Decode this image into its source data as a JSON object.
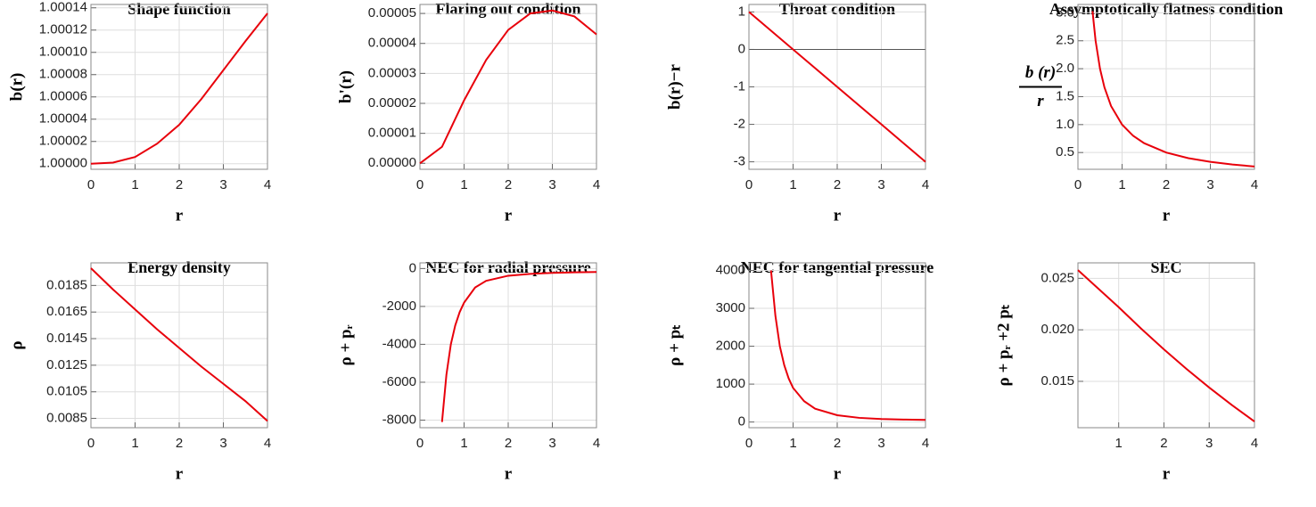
{
  "chart_data": [
    {
      "type": "line",
      "title": "Shape function",
      "xlabel": "r",
      "ylabel": "b(r)",
      "color": "#e8000b",
      "grid": true,
      "x": [
        0,
        0.5,
        1,
        1.5,
        2,
        2.5,
        3,
        3.5,
        4
      ],
      "values": [
        1.0,
        1.000001,
        1.000006,
        1.000018,
        1.000035,
        1.000058,
        1.000084,
        1.00011,
        1.000135
      ],
      "xlim": [
        0,
        4
      ],
      "ylim": [
        0.999995,
        1.000143
      ],
      "xticks": [
        0,
        1,
        2,
        3,
        4
      ],
      "yticks": [
        {
          "value": 1.0,
          "label": "1.00000"
        },
        {
          "value": 1.00002,
          "label": "1.00002"
        },
        {
          "value": 1.00004,
          "label": "1.00004"
        },
        {
          "value": 1.00006,
          "label": "1.00006"
        },
        {
          "value": 1.00008,
          "label": "1.00008"
        },
        {
          "value": 1.0001,
          "label": "1.00010"
        },
        {
          "value": 1.00012,
          "label": "1.00012"
        },
        1.00014
      ]
    },
    {
      "type": "line",
      "title": "Flaring out condition",
      "xlabel": "r",
      "ylabel": "b'(r)",
      "color": "#e8000b",
      "grid": true,
      "x": [
        0,
        0.5,
        1,
        1.5,
        2,
        2.5,
        3,
        3.5,
        4
      ],
      "values": [
        0,
        5.5e-06,
        2.1e-05,
        3.45e-05,
        4.45e-05,
        5e-05,
        5.1e-05,
        4.9e-05,
        4.3e-05
      ],
      "xlim": [
        0,
        4
      ],
      "ylim": [
        -2e-06,
        5.3e-05
      ],
      "xticks": [
        0,
        1,
        2,
        3,
        4
      ],
      "yticks": [
        {
          "value": 0,
          "label": "0.00000"
        },
        1e-05,
        2e-05,
        3e-05,
        4e-05,
        5e-05
      ]
    },
    {
      "type": "line",
      "title": "Throat condition",
      "xlabel": "r",
      "ylabel": "b(r)−r",
      "color": "#e8000b",
      "grid": true,
      "axes": true,
      "x": [
        0,
        1,
        2,
        3,
        4
      ],
      "values": [
        1,
        0,
        -1,
        -2,
        -3
      ],
      "xlim": [
        0,
        4
      ],
      "ylim": [
        -3.2,
        1.2
      ],
      "xticks": [
        0,
        1,
        2,
        3,
        4
      ],
      "yticks": [
        -3,
        -2,
        -1,
        0,
        1
      ]
    },
    {
      "type": "line",
      "title": "Assymptotically flatness condition",
      "xlabel": "r",
      "ylabel": {
        "numerator": "b (r)",
        "denominator": "r"
      },
      "color": "#e8000b",
      "grid": true,
      "x": [
        0.33,
        0.4,
        0.5,
        0.6,
        0.75,
        1,
        1.25,
        1.5,
        2,
        2.5,
        3,
        3.5,
        4
      ],
      "values": [
        3.03,
        2.5,
        2.0,
        1.667,
        1.333,
        1.0,
        0.8,
        0.667,
        0.5,
        0.4,
        0.333,
        0.286,
        0.25
      ],
      "xlim": [
        0,
        4
      ],
      "ylim": [
        0.2,
        3.15
      ],
      "xticks": [
        0,
        1,
        2,
        3,
        4
      ],
      "yticks": [
        0.5,
        {
          "value": 1,
          "label": "1.0"
        },
        1.5,
        {
          "value": 2,
          "label": "2.0"
        },
        2.5,
        {
          "value": 3,
          "label": "3.0"
        }
      ]
    },
    {
      "type": "line",
      "title": "Energy density",
      "xlabel": "r",
      "ylabel": "ρ",
      "color": "#e8000b",
      "grid": true,
      "x": [
        0,
        0.5,
        1,
        1.5,
        2,
        2.5,
        3,
        3.5,
        4
      ],
      "values": [
        0.0198,
        0.0182,
        0.0167,
        0.0152,
        0.0138,
        0.0124,
        0.0111,
        0.0098,
        0.0083
      ],
      "xlim": [
        0,
        4
      ],
      "ylim": [
        0.0078,
        0.0202
      ],
      "xticks": [
        0,
        1,
        2,
        3,
        4
      ],
      "yticks": [
        0.0085,
        0.0105,
        0.0125,
        0.0145,
        0.0165,
        0.0185
      ]
    },
    {
      "type": "line",
      "title": "NEC for radial pressure",
      "xlabel": "r",
      "ylabel": "ρ + pᵣ",
      "color": "#e8000b",
      "grid": true,
      "x": [
        0.5,
        0.6,
        0.7,
        0.8,
        0.9,
        1,
        1.25,
        1.5,
        2,
        2.5,
        3,
        3.5,
        4
      ],
      "values": [
        -8100,
        -5600,
        -4000,
        -3000,
        -2300,
        -1800,
        -1000,
        -650,
        -380,
        -280,
        -230,
        -200,
        -180
      ],
      "xlim": [
        0,
        4
      ],
      "ylim": [
        -8400,
        300
      ],
      "xticks": [
        0,
        1,
        2,
        3,
        4
      ],
      "yticks": [
        -8000,
        -6000,
        -4000,
        -2000,
        0
      ]
    },
    {
      "type": "line",
      "title": "NEC for tangential pressure",
      "xlabel": "r",
      "ylabel": "ρ + pₜ",
      "color": "#e8000b",
      "grid": true,
      "x": [
        0.5,
        0.6,
        0.7,
        0.8,
        0.9,
        1,
        1.25,
        1.5,
        2,
        2.5,
        3,
        3.5,
        4
      ],
      "values": [
        4000,
        2800,
        2000,
        1500,
        1150,
        900,
        550,
        350,
        180,
        110,
        80,
        65,
        55
      ],
      "xlim": [
        0,
        4
      ],
      "ylim": [
        -150,
        4200
      ],
      "xticks": [
        0,
        1,
        2,
        3,
        4
      ],
      "yticks": [
        0,
        1000,
        2000,
        3000,
        4000
      ]
    },
    {
      "type": "line",
      "title": "SEC",
      "xlabel": "r",
      "ylabel": "ρ + pᵣ +2 pₜ",
      "color": "#e8000b",
      "grid": true,
      "x": [
        0.1,
        0.5,
        1,
        1.5,
        2,
        2.5,
        3,
        3.5,
        4
      ],
      "values": [
        0.0258,
        0.0242,
        0.0222,
        0.0201,
        0.0181,
        0.0162,
        0.0144,
        0.0127,
        0.0111
      ],
      "xlim": [
        0.1,
        4
      ],
      "ylim": [
        0.0105,
        0.0265
      ],
      "xticks": [
        1,
        2,
        3,
        4
      ],
      "yticks": [
        0.015,
        {
          "value": 0.02,
          "label": "0.020"
        },
        0.025
      ]
    }
  ]
}
